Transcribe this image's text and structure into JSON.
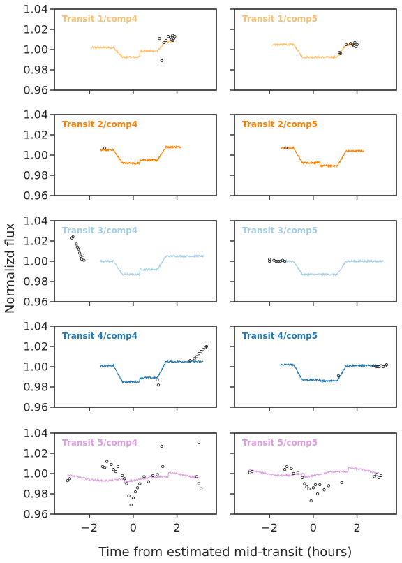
{
  "chart_data": {
    "type": "scatter",
    "layout": "5 rows x 2 columns small multiples",
    "xlabel": "Time from estimated mid-transit (hours)",
    "ylabel": "Normalizd flux",
    "xlim": [
      -3.6,
      3.8
    ],
    "ylim": [
      0.96,
      1.04
    ],
    "xticks": [
      -2,
      0,
      2
    ],
    "yticks": [
      0.96,
      0.98,
      1.0,
      1.02,
      1.04
    ],
    "ytick_labels": [
      "0.96",
      "0.98",
      "1.00",
      "1.02",
      "1.04"
    ],
    "xtick_labels": [
      "−2",
      "0",
      "2"
    ],
    "panels": [
      {
        "title": "Transit 1/comp4",
        "color": "#fdbf6f",
        "x_start": -1.9,
        "x_end": 1.9,
        "pre": 1.002,
        "post": 1.008,
        "depth": 0.0095,
        "outliers": [
          [
            1.2,
            1.011
          ],
          [
            1.3,
            0.989
          ],
          [
            1.4,
            1.007
          ],
          [
            1.5,
            1.009
          ],
          [
            1.6,
            1.013
          ],
          [
            1.7,
            1.012
          ],
          [
            1.75,
            1.01
          ],
          [
            1.8,
            1.014
          ],
          [
            1.85,
            1.011
          ],
          [
            1.9,
            1.013
          ],
          [
            1.8,
            1.009
          ]
        ]
      },
      {
        "title": "Transit 1/comp5",
        "color": "#fdbf6f",
        "x_start": -1.9,
        "x_end": 1.9,
        "pre": 1.005,
        "post": 1.005,
        "depth": 0.0125,
        "outliers": [
          [
            1.2,
            0.997
          ],
          [
            1.25,
            0.996
          ],
          [
            1.5,
            1.005
          ],
          [
            1.7,
            1.006
          ],
          [
            1.8,
            1.005
          ],
          [
            1.85,
            1.004
          ],
          [
            1.9,
            1.007
          ],
          [
            1.95,
            1.003
          ],
          [
            2.0,
            1.005
          ]
        ]
      },
      {
        "title": "Transit 2/comp4",
        "color": "#ff7f00",
        "x_start": -1.5,
        "x_end": 2.2,
        "pre": 1.005,
        "post": 1.008,
        "depth": 0.013,
        "outliers": [
          [
            -1.3,
            1.007
          ]
        ]
      },
      {
        "title": "Transit 2/comp5",
        "color": "#ff7f00",
        "x_start": -1.5,
        "x_end": 2.3,
        "pre": 1.007,
        "post": 1.004,
        "depth": 0.0145,
        "outliers": [
          [
            -1.25,
            1.007
          ]
        ]
      },
      {
        "title": "Transit 3/comp4",
        "color": "#a6cee3",
        "x_start": -1.5,
        "x_end": 3.2,
        "pre": 1.0,
        "post": 1.005,
        "depth": 0.013,
        "outliers": [
          [
            -2.8,
            1.023
          ],
          [
            -2.75,
            1.024
          ],
          [
            -2.6,
            1.017
          ],
          [
            -2.55,
            1.014
          ],
          [
            -2.5,
            1.012
          ],
          [
            -2.45,
            1.008
          ],
          [
            -2.4,
            1.005
          ],
          [
            -2.35,
            1.002
          ],
          [
            -2.3,
            1.006
          ],
          [
            -2.25,
            1.001
          ]
        ]
      },
      {
        "title": "Transit 3/comp5",
        "color": "#a6cee3",
        "x_start": -1.4,
        "x_end": 3.2,
        "pre": 1.0,
        "post": 1.0,
        "depth": 0.013,
        "outliers": [
          [
            -2.0,
            1.002
          ],
          [
            -2.0,
            1.0
          ],
          [
            -1.8,
            1.001
          ],
          [
            -1.7,
            1.0
          ],
          [
            -1.6,
            1.0
          ],
          [
            -1.5,
            1.0
          ],
          [
            -1.4,
            1.001
          ],
          [
            -1.3,
            1.0
          ]
        ]
      },
      {
        "title": "Transit 4/comp4",
        "color": "#1f78b4",
        "x_start": -1.5,
        "x_end": 3.2,
        "pre": 1.001,
        "post": 1.005,
        "depth": 0.016,
        "outliers": [
          [
            1.1,
            0.987
          ],
          [
            1.15,
            0.982
          ],
          [
            2.6,
            1.006
          ],
          [
            2.8,
            1.008
          ],
          [
            2.9,
            1.01
          ],
          [
            3.0,
            1.013
          ],
          [
            3.1,
            1.015
          ],
          [
            3.2,
            1.017
          ],
          [
            3.3,
            1.019
          ],
          [
            3.35,
            1.02
          ]
        ]
      },
      {
        "title": "Transit 4/comp5",
        "color": "#1f78b4",
        "x_start": -1.5,
        "x_end": 3.0,
        "pre": 1.002,
        "post": 1.001,
        "depth": 0.015,
        "outliers": [
          [
            1.15,
            0.991
          ],
          [
            2.75,
            1.001
          ],
          [
            2.9,
            1.0
          ],
          [
            3.0,
            1.0
          ],
          [
            3.1,
            1.001
          ],
          [
            3.2,
            1.0
          ],
          [
            3.3,
            1.001
          ],
          [
            3.35,
            1.002
          ]
        ]
      },
      {
        "title": "Transit 5/comp4",
        "color": "#df9ee1",
        "x_start": -3.0,
        "x_end": 3.0,
        "pre": 0.997,
        "post": 0.997,
        "depth": 0.0,
        "outliers": [
          [
            -3.0,
            0.993
          ],
          [
            -2.9,
            0.995
          ],
          [
            -1.4,
            1.007
          ],
          [
            -1.3,
            1.006
          ],
          [
            -1.2,
            1.012
          ],
          [
            -1.0,
            1.009
          ],
          [
            -0.9,
            1.004
          ],
          [
            -0.8,
            1.002
          ],
          [
            -0.7,
            1.007
          ],
          [
            -0.5,
            0.998
          ],
          [
            -0.4,
            0.995
          ],
          [
            -0.3,
            0.99
          ],
          [
            -0.2,
            0.978
          ],
          [
            -0.1,
            0.969
          ],
          [
            0.0,
            0.976
          ],
          [
            0.1,
            0.982
          ],
          [
            0.2,
            0.986
          ],
          [
            0.3,
            0.99
          ],
          [
            0.5,
            0.997
          ],
          [
            0.7,
            0.992
          ],
          [
            0.9,
            0.998
          ],
          [
            1.1,
            0.999
          ],
          [
            1.3,
            1.027
          ],
          [
            1.35,
            1.007
          ],
          [
            2.9,
            0.997
          ],
          [
            3.0,
            0.99
          ],
          [
            3.1,
            0.985
          ],
          [
            3.0,
            1.031
          ]
        ]
      },
      {
        "title": "Transit 5/comp5",
        "color": "#df9ee1",
        "x_start": -3.0,
        "x_end": 3.0,
        "pre": 1.002,
        "post": 0.999,
        "depth": 0.0,
        "outliers": [
          [
            -2.9,
            1.001
          ],
          [
            -2.8,
            1.002
          ],
          [
            -1.3,
            1.004
          ],
          [
            -1.2,
            1.007
          ],
          [
            -1.0,
            1.005
          ],
          [
            -0.9,
            1.0
          ],
          [
            -0.7,
            1.001
          ],
          [
            -0.5,
            0.996
          ],
          [
            -0.4,
            0.99
          ],
          [
            -0.3,
            0.987
          ],
          [
            -0.2,
            0.985
          ],
          [
            -0.1,
            0.973
          ],
          [
            0.0,
            0.986
          ],
          [
            0.1,
            0.989
          ],
          [
            0.2,
            0.98
          ],
          [
            0.3,
            0.989
          ],
          [
            0.5,
            0.984
          ],
          [
            0.7,
            0.988
          ],
          [
            1.3,
            0.991
          ],
          [
            2.8,
            0.997
          ],
          [
            2.9,
            0.999
          ],
          [
            3.0,
            0.996
          ],
          [
            3.1,
            0.998
          ]
        ]
      }
    ]
  }
}
